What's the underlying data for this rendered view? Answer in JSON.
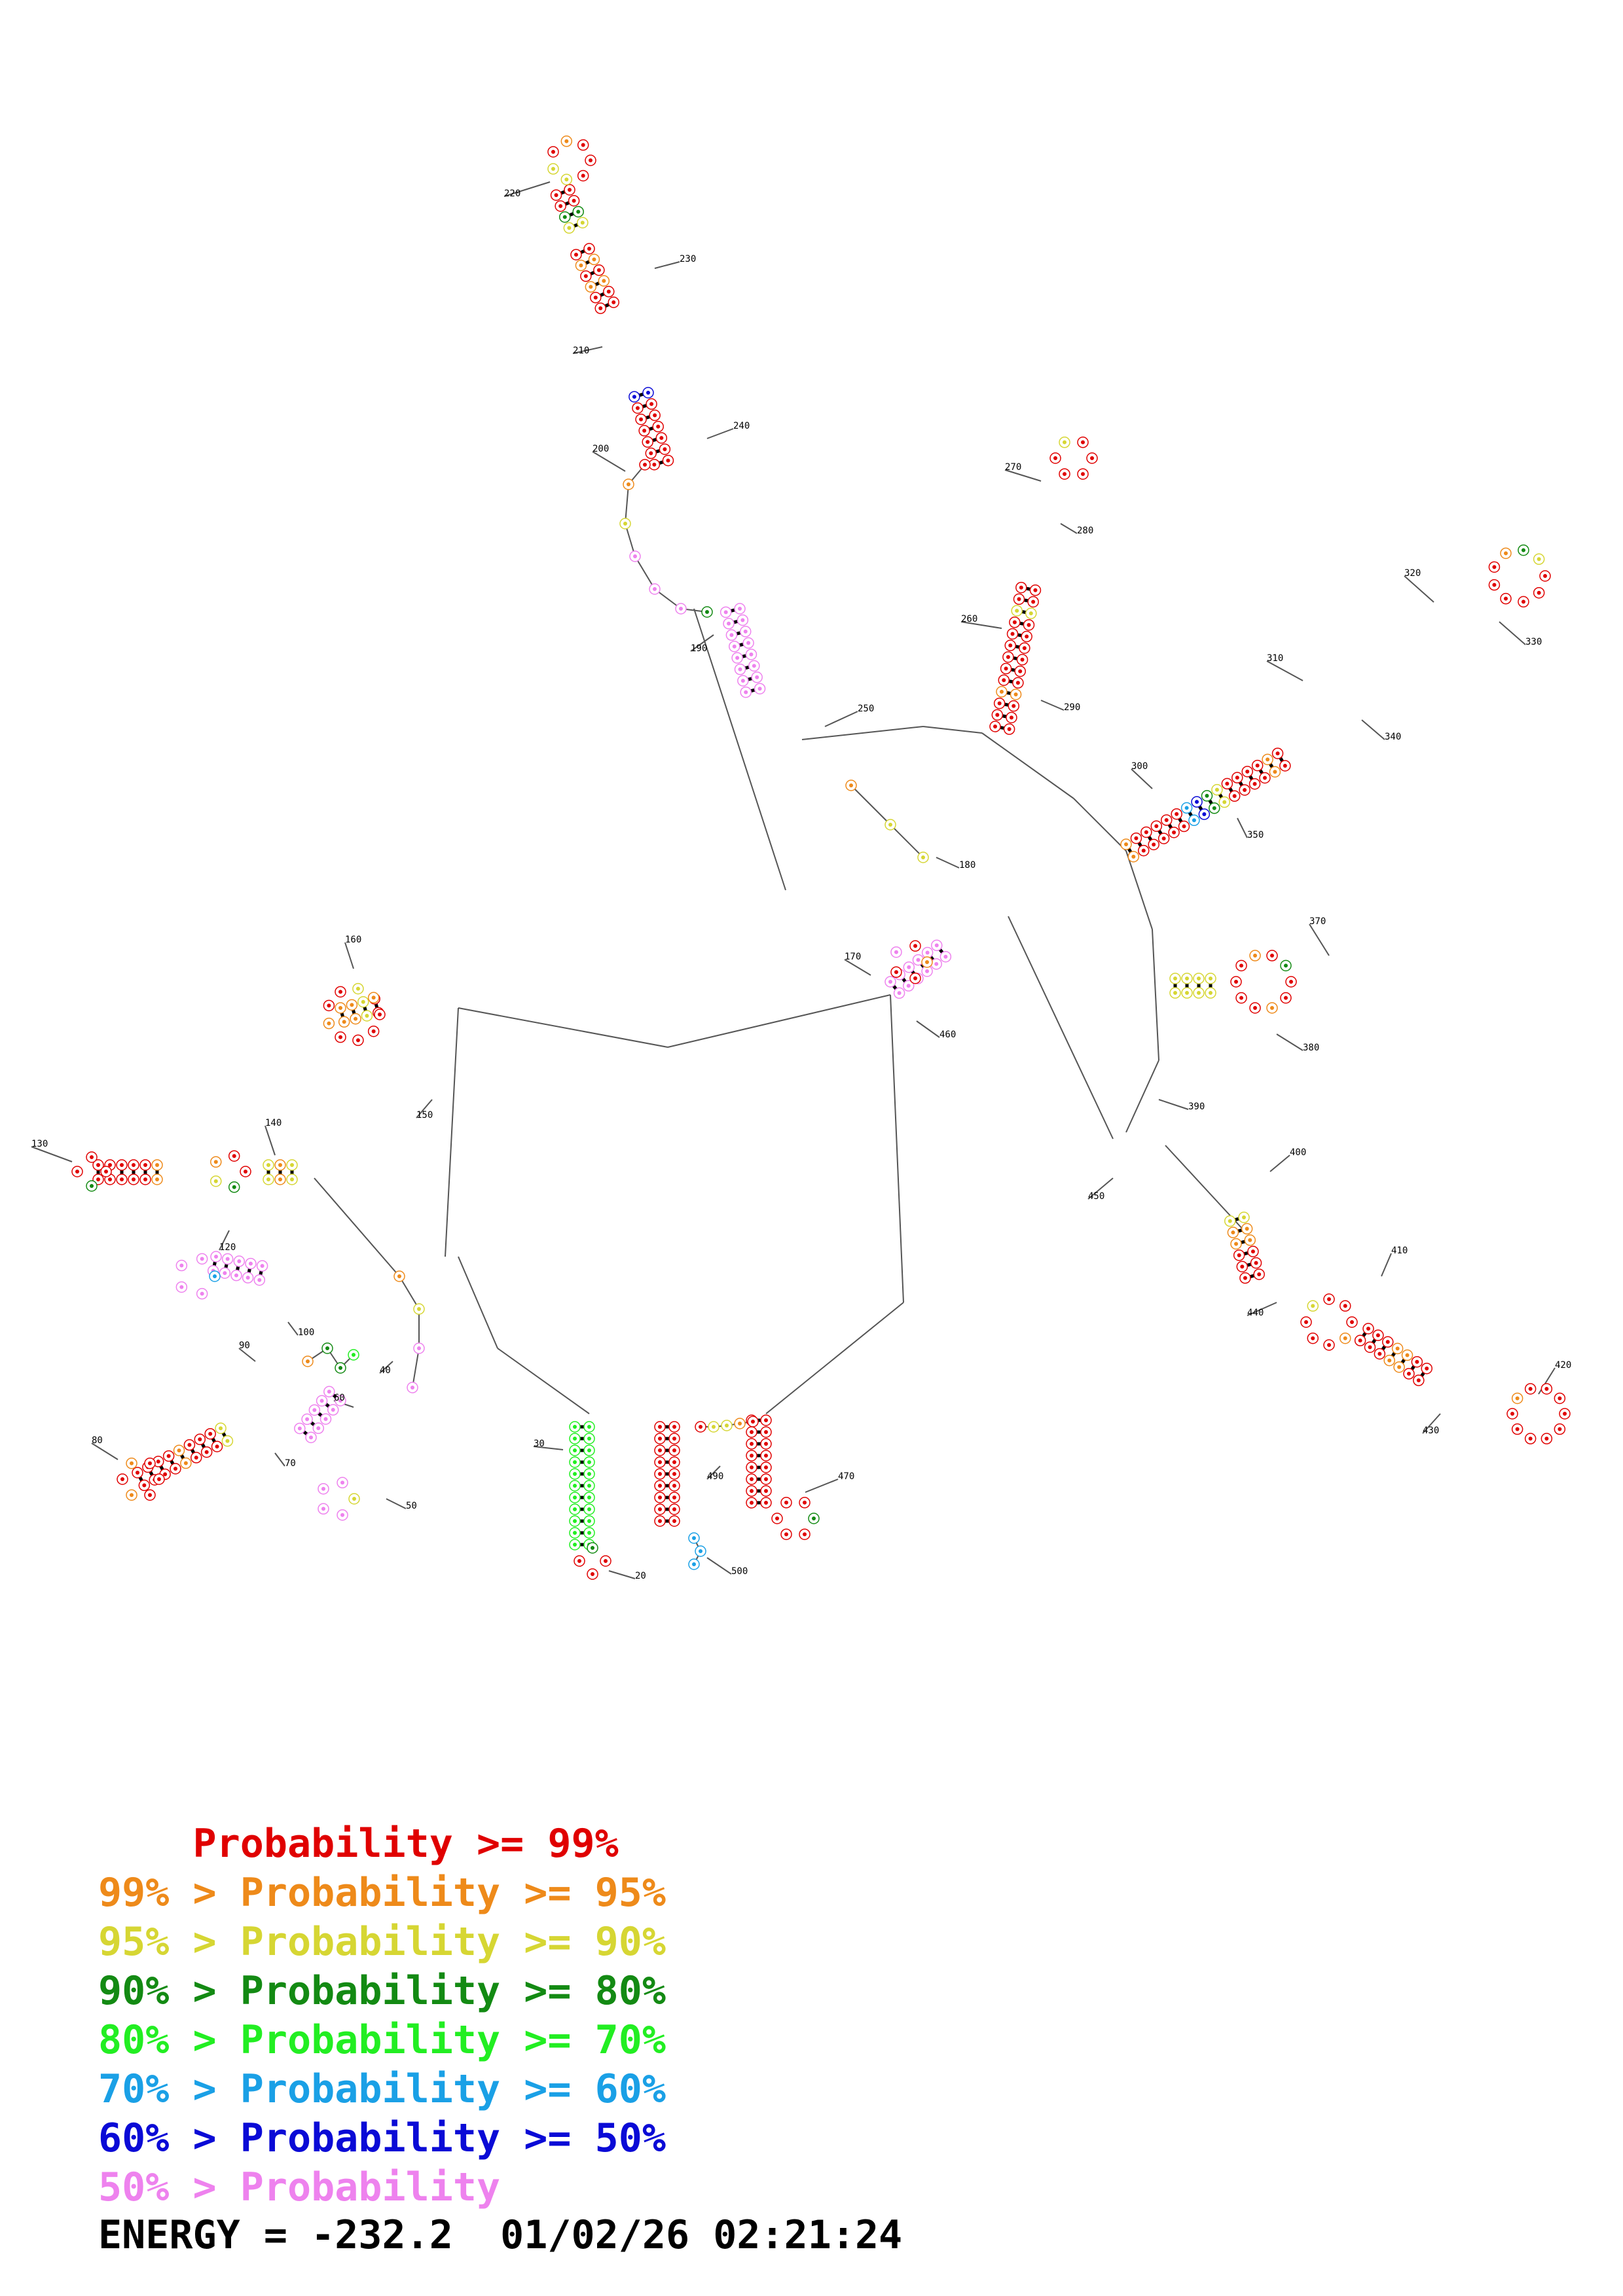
{
  "legend": {
    "rows": [
      {
        "prefix": "    ",
        "label": "Probability >= 99%",
        "color": "#e00000"
      },
      {
        "prefix": "99% > ",
        "label": "Probability >= 95%",
        "color": "#ee8a1a"
      },
      {
        "prefix": "95% > ",
        "label": "Probability >= 90%",
        "color": "#d6d633"
      },
      {
        "prefix": "90% > ",
        "label": "Probability >= 80%",
        "color": "#138a13"
      },
      {
        "prefix": "80% > ",
        "label": "Probability >= 70%",
        "color": "#22ee22"
      },
      {
        "prefix": "70% > ",
        "label": "Probability >= 60%",
        "color": "#1aa0e6"
      },
      {
        "prefix": "60% > ",
        "label": "Probability >= 50%",
        "color": "#0a0ad6"
      },
      {
        "prefix": "50% > ",
        "label": "Probability",
        "color": "#ee82ee"
      }
    ]
  },
  "energy": {
    "text": "ENERGY = -232.2  01/02/26 02:21:24"
  },
  "structure": {
    "index_labels": [
      "20",
      "30",
      "40",
      "50",
      "60",
      "70",
      "80",
      "90",
      "100",
      "120",
      "130",
      "140",
      "150",
      "160",
      "170",
      "180",
      "190",
      "200",
      "210",
      "220",
      "230",
      "240",
      "250",
      "260",
      "270",
      "280",
      "290",
      "300",
      "310",
      "320",
      "330",
      "340",
      "350",
      "370",
      "380",
      "390",
      "400",
      "410",
      "420",
      "430",
      "440",
      "450",
      "460",
      "470",
      "490",
      "500"
    ]
  }
}
